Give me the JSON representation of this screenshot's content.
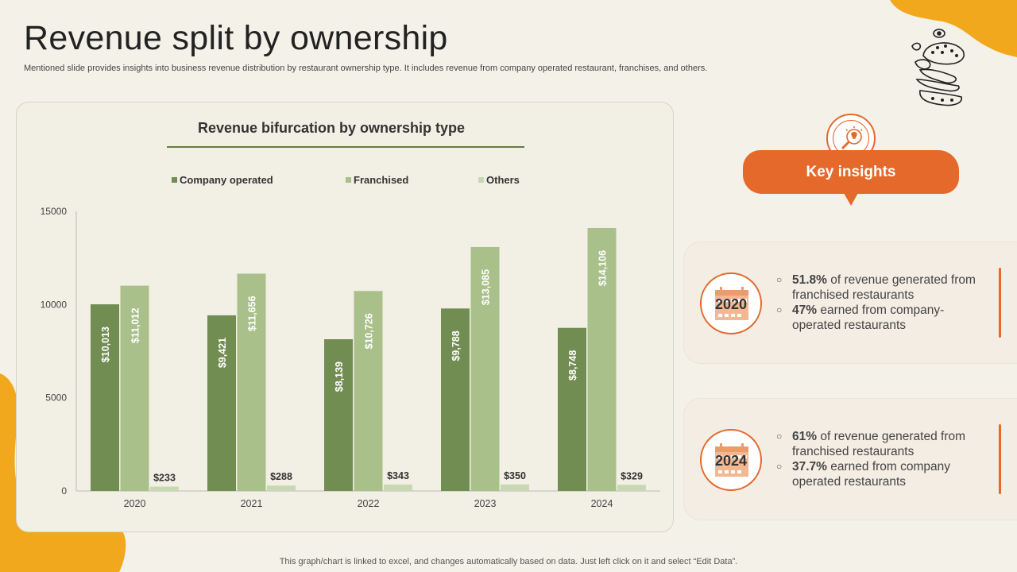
{
  "page": {
    "title": "Revenue split by ownership",
    "subtitle": "Mentioned slide provides insights into business revenue distribution by restaurant ownership type. It includes revenue from company operated restaurant, franchises, and others.",
    "footer": "This graph/chart is linked to excel, and changes automatically based on data. Just left click on it and select “Edit Data”."
  },
  "colors": {
    "accent": "#e4692a",
    "yellow": "#f2a81d",
    "company": "#728d52",
    "franchised": "#a9c08b",
    "others": "#c9d8b4"
  },
  "icons": [
    "burger-sketch-icon",
    "lightbulb-search-icon",
    "calendar-icon"
  ],
  "chart_data": {
    "type": "bar",
    "title": "Revenue bifurcation by ownership type",
    "categories": [
      "2020",
      "2021",
      "2022",
      "2023",
      "2024"
    ],
    "series": [
      {
        "name": "Company operated",
        "values": [
          10013,
          9421,
          8139,
          9788,
          8748
        ],
        "labels": [
          "$10,013",
          "$9,421",
          "$8,139",
          "$9,788",
          "$8,748"
        ],
        "color": "#728d52"
      },
      {
        "name": "Franchised",
        "values": [
          11012,
          11656,
          10726,
          13085,
          14106
        ],
        "labels": [
          "$11,012",
          "$11,656",
          "$10,726",
          "$13,085",
          "$14,106"
        ],
        "color": "#a9c08b"
      },
      {
        "name": "Others",
        "values": [
          233,
          288,
          343,
          350,
          329
        ],
        "labels": [
          "$233",
          "$288",
          "$343",
          "$350",
          "$329"
        ],
        "color": "#c9d8b4"
      }
    ],
    "yticks": [
      "0",
      "5000",
      "10000",
      "15000"
    ],
    "ylim": [
      0,
      15000
    ],
    "legend": "top",
    "grid": false
  },
  "insights": {
    "title": "Key insights",
    "cards": [
      {
        "year": "2020",
        "items": [
          {
            "highlight": "51.8%",
            "text": " of revenue generated from franchised restaurants"
          },
          {
            "highlight": "47%",
            "text": " earned from company-operated restaurants"
          }
        ]
      },
      {
        "year": "2024",
        "items": [
          {
            "highlight": "61%",
            "text": " of revenue generated from franchised restaurants"
          },
          {
            "highlight": "37.7%",
            "text": " earned from company operated restaurants"
          }
        ]
      }
    ]
  }
}
